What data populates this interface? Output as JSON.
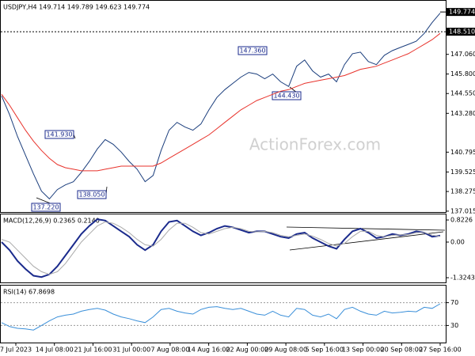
{
  "chart_data": [
    {
      "type": "line",
      "title": "USDJPY,H4 149.714 149.789 149.623 149.774",
      "watermark": "ActionForex.com",
      "ylim": [
        136.96,
        150.49
      ],
      "yticks": [
        {
          "value": 147.06,
          "label": "147.060"
        },
        {
          "value": 145.8,
          "label": "145.800"
        },
        {
          "value": 144.55,
          "label": "144.550"
        },
        {
          "value": 143.28,
          "label": "143.280"
        },
        {
          "value": 140.795,
          "label": "140.795"
        },
        {
          "value": 139.525,
          "label": "139.525"
        },
        {
          "value": 138.275,
          "label": "138.275"
        },
        {
          "value": 137.015,
          "label": "137.015"
        }
      ],
      "last_price": {
        "value": 149.774,
        "label": "149.774"
      },
      "support_level": {
        "value": 148.51,
        "label": "148.510"
      },
      "annotations": [
        "147.360",
        "144.430",
        "141.930",
        "138.050",
        "137.220"
      ],
      "x_labels": [
        "7 Jul 2023",
        "14 Jul 08:00",
        "21 Jul 16:00",
        "31 Jul 00:00",
        "7 Aug 08:00",
        "14 Aug 16:00",
        "22 Aug 00:00",
        "29 Aug 08:00",
        "5 Sep 16:00",
        "13 Sep 00:00",
        "20 Sep 08:00",
        "27 Sep 16:00"
      ],
      "series": [
        {
          "name": "Price",
          "color": "#1a3d7c",
          "values": [
            144.4,
            143.2,
            141.8,
            140.6,
            139.4,
            138.3,
            137.8,
            138.4,
            138.7,
            138.9,
            139.5,
            140.2,
            141.0,
            141.6,
            141.3,
            140.8,
            140.2,
            139.7,
            138.9,
            139.3,
            140.9,
            142.2,
            142.7,
            142.4,
            142.2,
            142.6,
            143.5,
            144.3,
            144.8,
            145.2,
            145.6,
            145.9,
            145.8,
            145.5,
            145.8,
            145.3,
            145.0,
            146.3,
            146.7,
            146.0,
            145.6,
            145.8,
            145.3,
            146.4,
            147.1,
            147.2,
            146.6,
            146.4,
            147.0,
            147.3,
            147.5,
            147.7,
            147.9,
            148.4,
            149.1,
            149.7
          ]
        },
        {
          "name": "Moving Average",
          "color": "#e8322b",
          "values": [
            144.5,
            143.8,
            143.0,
            142.2,
            141.5,
            140.9,
            140.4,
            140.0,
            139.8,
            139.7,
            139.6,
            139.6,
            139.6,
            139.7,
            139.8,
            139.9,
            139.9,
            139.9,
            139.9,
            139.9,
            140.1,
            140.4,
            140.7,
            141.0,
            141.3,
            141.6,
            141.9,
            142.3,
            142.7,
            143.1,
            143.5,
            143.8,
            144.1,
            144.3,
            144.5,
            144.7,
            144.8,
            145.0,
            145.2,
            145.3,
            145.4,
            145.5,
            145.6,
            145.7,
            145.9,
            146.1,
            146.2,
            146.3,
            146.5,
            146.7,
            146.9,
            147.1,
            147.4,
            147.7,
            148.0,
            148.4
          ]
        }
      ]
    },
    {
      "type": "line",
      "title": "MACD(12,26,9) 0.2365 0.2140",
      "ylim": [
        -1.5,
        1.03
      ],
      "yticks": [
        0.8226,
        {
          "value": 0,
          "label": "0.00"
        },
        -1.3243
      ],
      "series": [
        {
          "name": "MACD",
          "color": "#1a2a8c",
          "values": [
            0.0,
            -0.3,
            -0.7,
            -1.0,
            -1.25,
            -1.3,
            -1.2,
            -0.9,
            -0.5,
            -0.1,
            0.3,
            0.6,
            0.85,
            0.8,
            0.6,
            0.4,
            0.2,
            -0.1,
            -0.3,
            -0.1,
            0.4,
            0.75,
            0.8,
            0.6,
            0.4,
            0.25,
            0.35,
            0.5,
            0.6,
            0.55,
            0.45,
            0.35,
            0.4,
            0.4,
            0.3,
            0.2,
            0.15,
            0.3,
            0.35,
            0.15,
            0.0,
            -0.15,
            -0.25,
            0.1,
            0.4,
            0.5,
            0.35,
            0.15,
            0.2,
            0.3,
            0.25,
            0.3,
            0.4,
            0.35,
            0.2,
            0.24
          ]
        },
        {
          "name": "Signal",
          "color": "#aaaaaa",
          "values": [
            0.1,
            0.0,
            -0.3,
            -0.6,
            -0.9,
            -1.1,
            -1.2,
            -1.1,
            -0.8,
            -0.4,
            0.0,
            0.3,
            0.6,
            0.75,
            0.7,
            0.55,
            0.35,
            0.1,
            -0.1,
            -0.15,
            0.1,
            0.45,
            0.7,
            0.7,
            0.55,
            0.35,
            0.3,
            0.4,
            0.5,
            0.55,
            0.5,
            0.4,
            0.38,
            0.4,
            0.35,
            0.25,
            0.2,
            0.25,
            0.3,
            0.22,
            0.1,
            -0.05,
            -0.15,
            -0.05,
            0.2,
            0.4,
            0.4,
            0.25,
            0.2,
            0.25,
            0.27,
            0.28,
            0.35,
            0.36,
            0.26,
            0.21
          ]
        }
      ]
    },
    {
      "type": "line",
      "title": "RSI(14) 67.8698",
      "ylim": [
        0,
        100
      ],
      "yticks": [
        70,
        30
      ],
      "series": [
        {
          "name": "RSI",
          "color": "#3a8fd9",
          "values": [
            35,
            28,
            25,
            24,
            22,
            30,
            38,
            45,
            48,
            50,
            55,
            58,
            60,
            57,
            50,
            45,
            42,
            38,
            35,
            45,
            58,
            60,
            55,
            52,
            50,
            58,
            62,
            63,
            60,
            58,
            60,
            55,
            50,
            48,
            55,
            48,
            45,
            60,
            58,
            48,
            45,
            50,
            42,
            58,
            62,
            55,
            50,
            48,
            55,
            52,
            53,
            55,
            54,
            62,
            60,
            68
          ]
        }
      ]
    }
  ]
}
